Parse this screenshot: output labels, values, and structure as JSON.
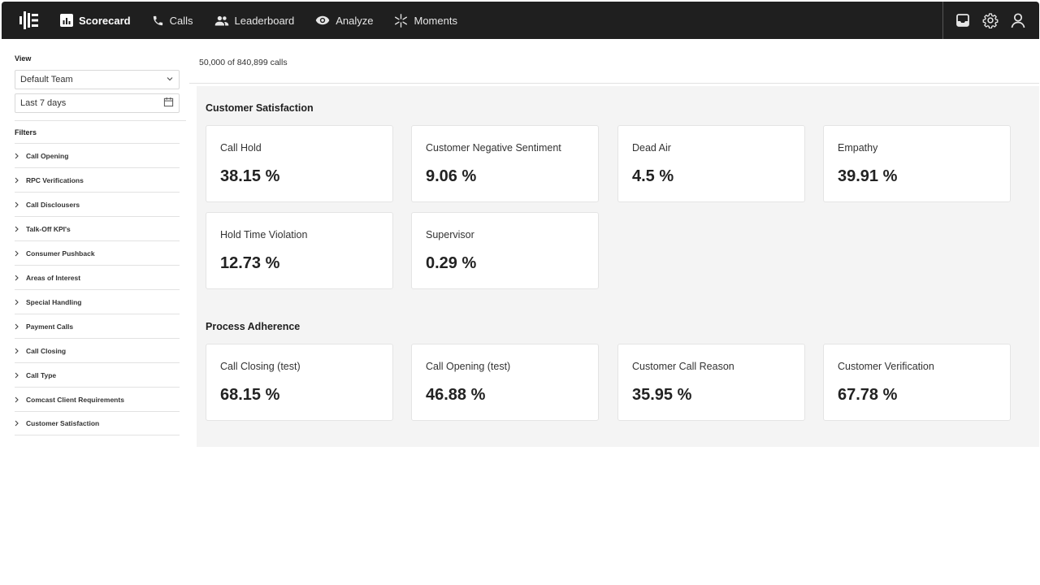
{
  "nav": {
    "items": [
      {
        "label": "Scorecard",
        "icon": "scorecard-icon"
      },
      {
        "label": "Calls",
        "icon": "phone-icon"
      },
      {
        "label": "Leaderboard",
        "icon": "people-icon"
      },
      {
        "label": "Analyze",
        "icon": "eye-icon"
      },
      {
        "label": "Moments",
        "icon": "sparkle-icon"
      }
    ],
    "right_icons": [
      "inbox-icon",
      "gear-icon",
      "user-icon"
    ]
  },
  "sidebar": {
    "view_label": "View",
    "team_select": "Default Team",
    "date_select": "Last 7 days",
    "filters_label": "Filters",
    "filters": [
      "Call Opening",
      "RPC Verifications",
      "Call Disclousers",
      "Talk-Off KPI's",
      "Consumer Pushback",
      "Areas of Interest",
      "Special Handling",
      "Payment Calls",
      "Call Closing",
      "Call Type",
      "Comcast Client Requirements",
      "Customer Satisfaction"
    ]
  },
  "main": {
    "count_text": "50,000 of 840,899 calls",
    "sections": [
      {
        "title": "Customer Satisfaction",
        "cards": [
          {
            "label": "Call Hold",
            "value": "38.15 %"
          },
          {
            "label": "Customer Negative Sentiment",
            "value": "9.06 %"
          },
          {
            "label": "Dead Air",
            "value": "4.5 %"
          },
          {
            "label": "Empathy",
            "value": "39.91 %"
          },
          {
            "label": "Hold Time Violation",
            "value": "12.73 %"
          },
          {
            "label": "Supervisor",
            "value": "0.29 %"
          }
        ]
      },
      {
        "title": "Process Adherence",
        "cards": [
          {
            "label": "Call Closing (test)",
            "value": "68.15 %"
          },
          {
            "label": "Call Opening (test)",
            "value": "46.88 %"
          },
          {
            "label": "Customer Call Reason",
            "value": "35.95 %"
          },
          {
            "label": "Customer Verification",
            "value": "67.78 %"
          }
        ]
      }
    ]
  }
}
